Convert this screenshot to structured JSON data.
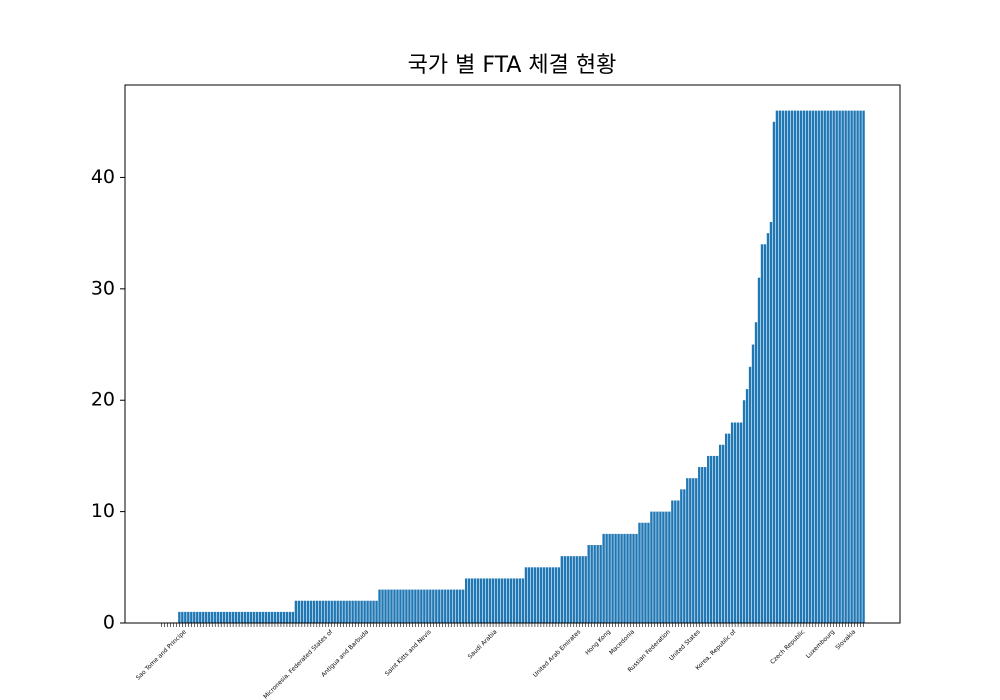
{
  "chart_data": {
    "type": "bar",
    "title": "국가 별 FTA 체결 현황",
    "categories": [
      null,
      null,
      null,
      null,
      null,
      null,
      null,
      null,
      "Sao Tome and Principe",
      null,
      null,
      null,
      null,
      null,
      null,
      null,
      null,
      null,
      null,
      null,
      null,
      null,
      null,
      null,
      null,
      null,
      null,
      null,
      null,
      null,
      null,
      null,
      null,
      null,
      null,
      null,
      null,
      null,
      null,
      null,
      null,
      null,
      null,
      null,
      null,
      null,
      null,
      null,
      null,
      null,
      null,
      null,
      null,
      null,
      null,
      null,
      null,
      "Micronesia, Federated States of",
      null,
      null,
      null,
      null,
      null,
      null,
      null,
      null,
      null,
      null,
      null,
      "Antigua and Barbuda",
      null,
      null,
      null,
      null,
      null,
      null,
      null,
      null,
      null,
      null,
      null,
      null,
      null,
      null,
      null,
      null,
      null,
      null,
      null,
      null,
      "Saint Kitts and Nevis",
      null,
      null,
      null,
      null,
      null,
      null,
      null,
      null,
      null,
      null,
      null,
      null,
      null,
      null,
      null,
      null,
      null,
      null,
      null,
      null,
      null,
      "Saudi Arabia",
      null,
      null,
      null,
      null,
      null,
      null,
      null,
      null,
      null,
      null,
      null,
      null,
      null,
      null,
      null,
      null,
      null,
      null,
      null,
      null,
      null,
      null,
      null,
      null,
      null,
      null,
      null,
      "United Arab Emirates",
      null,
      null,
      null,
      null,
      null,
      null,
      null,
      null,
      null,
      "Hong Kong",
      null,
      null,
      null,
      null,
      null,
      null,
      null,
      "Macedonia",
      null,
      null,
      null,
      null,
      null,
      null,
      null,
      null,
      null,
      null,
      null,
      "Russian Federation",
      null,
      null,
      null,
      null,
      null,
      null,
      null,
      null,
      null,
      "United States",
      null,
      null,
      null,
      null,
      null,
      null,
      null,
      null,
      null,
      null,
      null,
      "Korea, Republic of",
      null,
      null,
      null,
      null,
      null,
      null,
      null,
      null,
      null,
      null,
      null,
      null,
      null,
      null,
      null,
      null,
      null,
      null,
      null,
      null,
      null,
      null,
      "Czech Republic",
      null,
      null,
      null,
      null,
      null,
      null,
      null,
      null,
      null,
      "Luxembourg",
      null,
      null,
      null,
      null,
      null,
      null,
      "Slovakia",
      null,
      null,
      null
    ],
    "values": [
      0,
      0,
      0,
      0,
      0,
      0,
      1,
      1,
      1,
      1,
      1,
      1,
      1,
      1,
      1,
      1,
      1,
      1,
      1,
      1,
      1,
      1,
      1,
      1,
      1,
      1,
      1,
      1,
      1,
      1,
      1,
      1,
      1,
      1,
      1,
      1,
      1,
      1,
      1,
      1,
      1,
      1,
      1,
      1,
      1,
      2,
      2,
      2,
      2,
      2,
      2,
      2,
      2,
      2,
      2,
      2,
      2,
      2,
      2,
      2,
      2,
      2,
      2,
      2,
      2,
      2,
      2,
      2,
      2,
      2,
      2,
      2,
      2,
      3,
      3,
      3,
      3,
      3,
      3,
      3,
      3,
      3,
      3,
      3,
      3,
      3,
      3,
      3,
      3,
      3,
      3,
      3,
      3,
      3,
      3,
      3,
      3,
      3,
      3,
      3,
      3,
      3,
      4,
      4,
      4,
      4,
      4,
      4,
      4,
      4,
      4,
      4,
      4,
      4,
      4,
      4,
      4,
      4,
      4,
      4,
      4,
      4,
      5,
      5,
      5,
      5,
      5,
      5,
      5,
      5,
      5,
      5,
      5,
      5,
      6,
      6,
      6,
      6,
      6,
      6,
      6,
      6,
      6,
      7,
      7,
      7,
      7,
      7,
      8,
      8,
      8,
      8,
      8,
      8,
      8,
      8,
      8,
      8,
      8,
      8,
      9,
      9,
      9,
      9,
      10,
      10,
      10,
      10,
      10,
      10,
      10,
      11,
      11,
      11,
      12,
      12,
      13,
      13,
      13,
      13,
      14,
      14,
      14,
      15,
      15,
      15,
      15,
      16,
      16,
      17,
      17,
      18,
      18,
      18,
      18,
      20,
      21,
      23,
      25,
      27,
      31,
      34,
      34,
      35,
      36,
      45,
      46,
      46,
      46,
      46,
      46,
      46,
      46,
      46,
      46,
      46,
      46,
      46,
      46,
      46,
      46,
      46,
      46,
      46,
      46,
      46,
      46,
      46,
      46,
      46,
      46,
      46,
      46,
      46,
      46,
      46
    ],
    "color": "#1f77b4",
    "ylim": [
      0,
      48.3
    ],
    "yticks": [
      0,
      10,
      20,
      30,
      40
    ]
  }
}
